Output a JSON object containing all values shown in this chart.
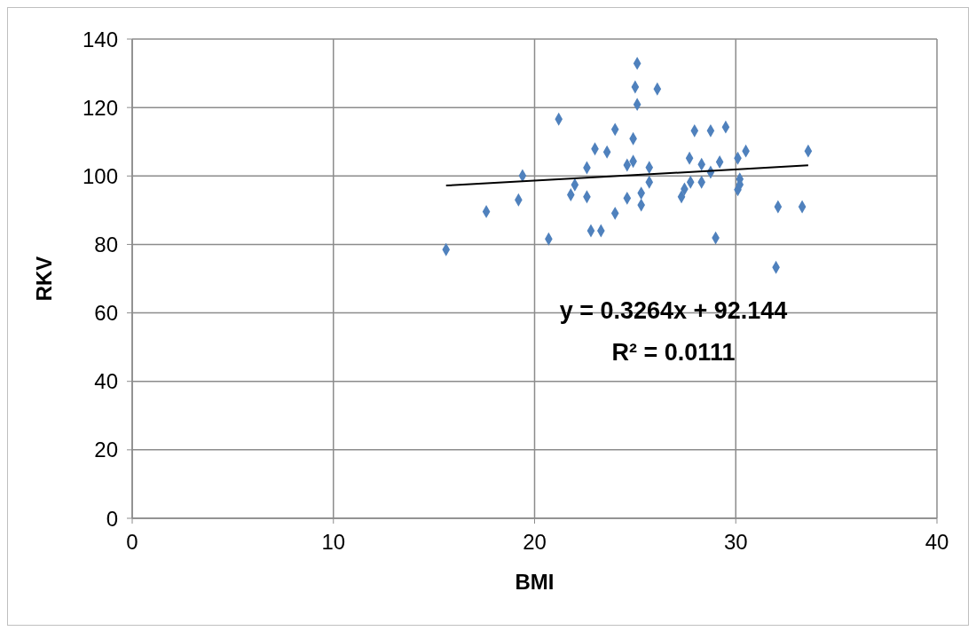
{
  "chart_data": {
    "type": "scatter",
    "xlabel": "BMI",
    "ylabel": "RKV",
    "xlim": [
      0,
      40
    ],
    "xticks": [
      0,
      10,
      20,
      30,
      40
    ],
    "ylim": [
      0,
      140
    ],
    "yticks": [
      0,
      20,
      40,
      60,
      80,
      100,
      120,
      140
    ],
    "grid": true,
    "marker": "diamond",
    "series": [
      {
        "color": "#4f81bd",
        "x": [
          15.6,
          17.6,
          19.2,
          19.4,
          20.7,
          21.2,
          21.8,
          22.0,
          22.6,
          22.6,
          22.8,
          23.3,
          23.0,
          23.6,
          24.0,
          24.0,
          24.6,
          24.6,
          24.9,
          24.9,
          25.0,
          25.1,
          25.1,
          25.3,
          25.3,
          25.7,
          25.7,
          26.1,
          27.95,
          28.75,
          29.5,
          27.7,
          28.3,
          29.2,
          28.75,
          30.1,
          30.5,
          33.6,
          27.75,
          28.3,
          27.45,
          27.3,
          30.2,
          30.2,
          30.1,
          32.1,
          33.3,
          29.0,
          32.0
        ],
        "values": [
          78.5,
          89.6,
          93.0,
          100.1,
          81.6,
          116.6,
          94.5,
          97.4,
          102.4,
          93.9,
          84.0,
          84.0,
          107.9,
          107.0,
          89.1,
          113.6,
          93.5,
          103.2,
          104.3,
          110.9,
          126.0,
          132.9,
          120.9,
          95.0,
          91.5,
          102.5,
          98.2,
          125.4,
          113.2,
          113.2,
          114.3,
          105.2,
          103.4,
          104.1,
          101.1,
          105.2,
          107.3,
          107.3,
          98.2,
          98.2,
          96.2,
          93.9,
          99.1,
          97.5,
          96.0,
          91.0,
          91.0,
          81.9,
          73.3
        ]
      },
      {
        "type": "line",
        "marker": "none",
        "color": "#000000",
        "x": [
          15.6,
          33.6
        ],
        "values": [
          97.2,
          103.1
        ]
      }
    ],
    "annotations": [
      "y = 0.3264x + 92.144",
      "R² = 0.0111"
    ]
  }
}
